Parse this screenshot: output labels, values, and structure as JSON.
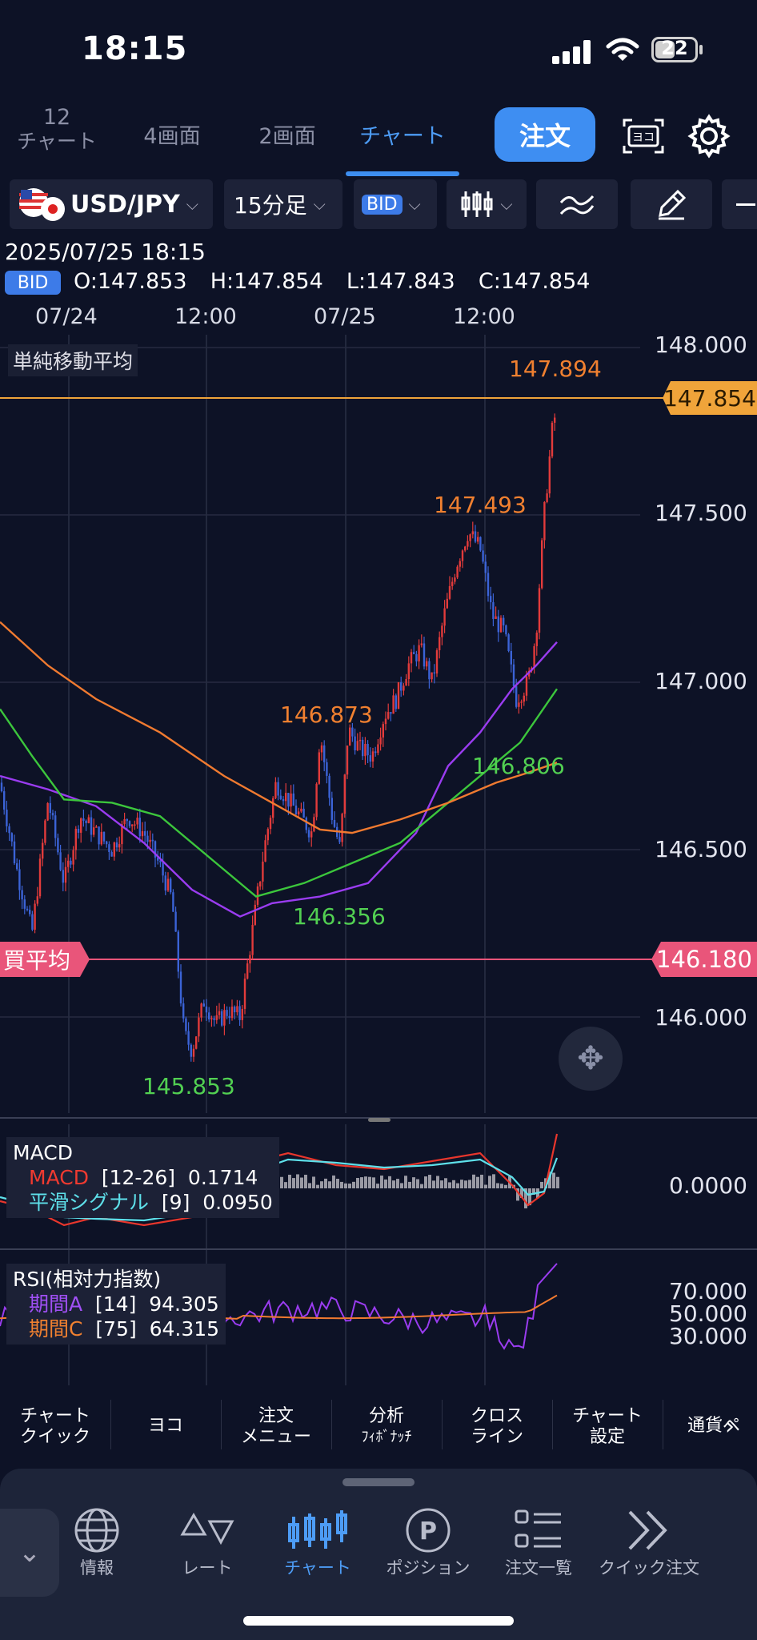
{
  "status_bar": {
    "time": "18:15",
    "battery": "22"
  },
  "tabs": [
    {
      "label_top": "12",
      "label": "チャート",
      "active": false
    },
    {
      "label": "4画面",
      "active": false
    },
    {
      "label": "2画面",
      "active": false
    },
    {
      "label": "チャート",
      "active": true
    }
  ],
  "order_button": "注文",
  "toolbar": {
    "pair": "USD/JPY",
    "timeframe": "15分足",
    "price_type": "BID"
  },
  "info": {
    "datetime": "2025/07/25 18:15",
    "badge": "BID",
    "ohlc": "O:147.853  H:147.854  L:147.843  C:147.854"
  },
  "x_axis": [
    "07/24",
    "12:00",
    "07/25",
    "12:00"
  ],
  "price_chart": {
    "indicator_label": "単純移動平均",
    "y_ticks": [
      "148.000",
      "147.500",
      "147.000",
      "146.500",
      "146.000"
    ],
    "current_price": "147.854",
    "avg_buy_label": "買平均",
    "avg_buy_price": "146.180",
    "annotations": {
      "high_recent": "147.894",
      "high_mid": "147.493",
      "peak_left": "146.873",
      "ma_point": "146.806",
      "trough_ma": "146.356",
      "low": "145.853"
    }
  },
  "macd": {
    "title": "MACD",
    "line1_name": "MACD",
    "line1_params": "[12-26]",
    "line1_value": "0.1714",
    "line2_name": "平滑シグナル",
    "line2_params": "[9]",
    "line2_value": "0.0950",
    "y_tick": "0.0000"
  },
  "rsi": {
    "title": "RSI(相対力指数)",
    "line1_name": "期間A",
    "line1_params": "[14]",
    "line1_value": "94.305",
    "line2_name": "期間C",
    "line2_params": "[75]",
    "line2_value": "64.315",
    "y_ticks": [
      "70.000",
      "50.000",
      "30.000"
    ]
  },
  "tools": [
    {
      "l1": "チャート",
      "l2": "クイック"
    },
    {
      "l1": "ヨコ",
      "l2": ""
    },
    {
      "l1": "注文",
      "l2": "メニュー"
    },
    {
      "l1": "分析",
      "l2": "ﾌｨﾎﾞﾅｯﾁ"
    },
    {
      "l1": "クロス",
      "l2": "ライン"
    },
    {
      "l1": "チャート",
      "l2": "設定"
    },
    {
      "l1": "通貨ペ",
      "l2": ""
    }
  ],
  "bottom_nav": [
    {
      "label": "情報",
      "icon": "globe-icon"
    },
    {
      "label": "レート",
      "icon": "triangles-icon"
    },
    {
      "label": "チャート",
      "icon": "candles-icon",
      "active": true
    },
    {
      "label": "ポジション",
      "icon": "p-circle-icon"
    },
    {
      "label": "注文一覧",
      "icon": "list-icon"
    },
    {
      "label": "クイック注文",
      "icon": "double-chevron-icon"
    }
  ],
  "colors": {
    "background": "#0d1226",
    "accent": "#3e8ef2",
    "candle_up": "#e23b3b",
    "candle_down": "#3b63d6",
    "ma_short": "#9a3cf0",
    "ma_mid": "#3cc63c",
    "ma_long": "#f07a30",
    "current_price": "#f0a43a",
    "avg_buy": "#e9557a"
  }
}
